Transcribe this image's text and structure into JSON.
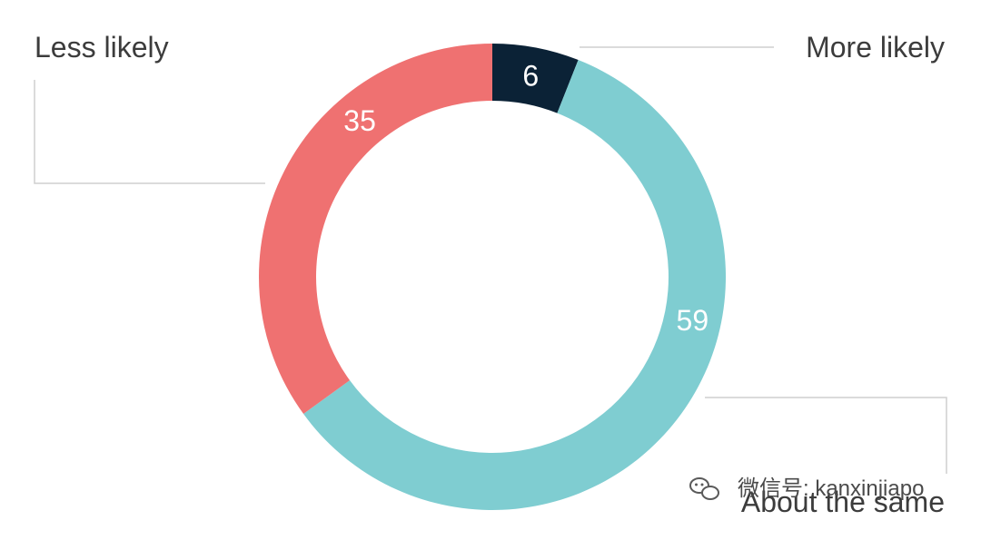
{
  "chart_data": {
    "type": "pie",
    "style": "donut",
    "slices": [
      {
        "label": "More likely",
        "value": 6,
        "color": "#0b2236",
        "text_color": "#ffffff"
      },
      {
        "label": "About the same",
        "value": 59,
        "color": "#7fcdd1",
        "text_color": "#ffffff"
      },
      {
        "label": "Less likely",
        "value": 35,
        "color": "#ef7171",
        "text_color": "#ffffff"
      }
    ]
  },
  "watermark": {
    "text": "微信号: kanxinjiapo",
    "icon": "wechat-icon"
  }
}
